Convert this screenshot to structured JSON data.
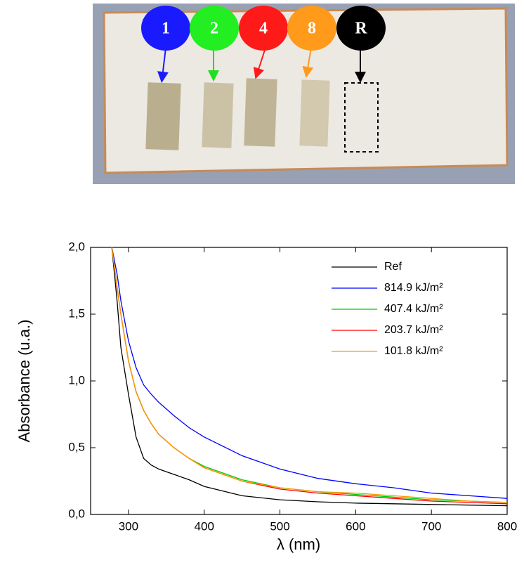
{
  "photo": {
    "labels": [
      "1",
      "2",
      "4",
      "8",
      "R"
    ]
  },
  "chart_data": {
    "type": "line",
    "xlabel": "λ (nm)",
    "ylabel": "Absorbance (u.a.)",
    "x": [
      278,
      285,
      290,
      300,
      310,
      320,
      330,
      340,
      350,
      360,
      380,
      400,
      450,
      500,
      550,
      600,
      650,
      700,
      750,
      800
    ],
    "series": [
      {
        "name": "Ref",
        "color": "#000000",
        "values": [
          2.0,
          1.6,
          1.25,
          0.9,
          0.58,
          0.42,
          0.37,
          0.34,
          0.32,
          0.3,
          0.26,
          0.21,
          0.14,
          0.11,
          0.095,
          0.085,
          0.08,
          0.075,
          0.07,
          0.065
        ]
      },
      {
        "name": "814.9 kJ/m²",
        "color": "#0000ff",
        "values": [
          2.0,
          1.8,
          1.6,
          1.3,
          1.1,
          0.97,
          0.9,
          0.84,
          0.79,
          0.74,
          0.65,
          0.58,
          0.44,
          0.34,
          0.27,
          0.23,
          0.2,
          0.16,
          0.14,
          0.12
        ]
      },
      {
        "name": "407.4 kJ/m²",
        "color": "#00cc00",
        "values": [
          2.0,
          1.7,
          1.5,
          1.15,
          0.92,
          0.78,
          0.68,
          0.6,
          0.55,
          0.5,
          0.42,
          0.36,
          0.26,
          0.2,
          0.17,
          0.15,
          0.13,
          0.11,
          0.1,
          0.09
        ]
      },
      {
        "name": "203.7 kJ/m²",
        "color": "#ff0000",
        "values": [
          2.0,
          1.7,
          1.5,
          1.15,
          0.92,
          0.78,
          0.68,
          0.6,
          0.55,
          0.5,
          0.42,
          0.35,
          0.25,
          0.19,
          0.16,
          0.14,
          0.12,
          0.1,
          0.09,
          0.08
        ]
      },
      {
        "name": "101.8 kJ/m²",
        "color": "#ff9900",
        "values": [
          2.0,
          1.7,
          1.5,
          1.15,
          0.92,
          0.78,
          0.68,
          0.6,
          0.55,
          0.5,
          0.42,
          0.35,
          0.25,
          0.2,
          0.17,
          0.16,
          0.14,
          0.12,
          0.1,
          0.09
        ]
      }
    ],
    "xlim": [
      250,
      800
    ],
    "xticks": [
      300,
      400,
      500,
      600,
      700,
      800
    ],
    "ylim": [
      0,
      2.0
    ],
    "yticks": [
      {
        "value": 0,
        "label": "0,0"
      },
      {
        "value": 0.5,
        "label": "0,5"
      },
      {
        "value": 1.0,
        "label": "1,0"
      },
      {
        "value": 1.5,
        "label": "1,5"
      },
      {
        "value": 2.0,
        "label": "2,0"
      }
    ],
    "legend": "upper right",
    "grid": false
  }
}
